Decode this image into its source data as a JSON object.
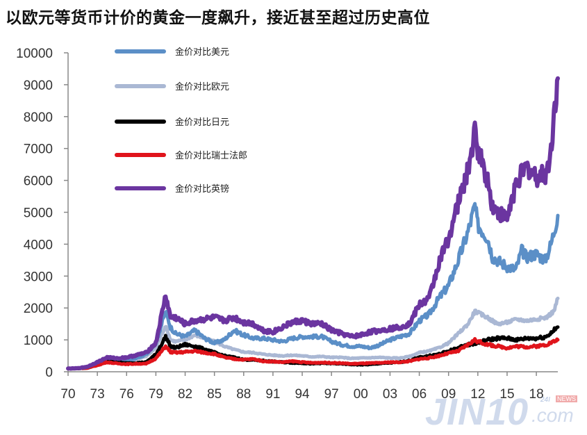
{
  "title": "以欧元等货币计价的黄金一度飙升，接近甚至超过历史高位",
  "watermark": {
    "brand": "JIN10",
    "suffix": ".com",
    "tag_a": "24I",
    "tag_b": "NEWS"
  },
  "chart_data": {
    "type": "line",
    "title": "以欧元等货币计价的黄金一度飙升，接近甚至超过历史高位",
    "xlabel": "",
    "ylabel": "",
    "xlim": [
      1970,
      2020.2
    ],
    "ylim": [
      0,
      10000
    ],
    "grid": false,
    "legend_position": "top-left",
    "x_ticks": [
      1970,
      1973,
      1976,
      1979,
      1982,
      1985,
      1988,
      1991,
      1994,
      1997,
      2000,
      2003,
      2006,
      2009,
      2012,
      2015,
      2018
    ],
    "x_tick_labels": [
      "70",
      "73",
      "76",
      "79",
      "82",
      "85",
      "88",
      "91",
      "94",
      "97",
      "00",
      "03",
      "06",
      "09",
      "12",
      "15",
      "18"
    ],
    "y_ticks": [
      0,
      1000,
      2000,
      3000,
      4000,
      5000,
      6000,
      7000,
      8000,
      9000,
      10000
    ],
    "y_tick_labels": [
      "0",
      "1000",
      "2000",
      "3000",
      "4000",
      "5000",
      "6000",
      "7000",
      "8000",
      "9000",
      "10000"
    ],
    "series": [
      {
        "name": "金价对比美元",
        "color": "#5b8fc7",
        "points": [
          [
            1970,
            100
          ],
          [
            1971,
            110
          ],
          [
            1972,
            150
          ],
          [
            1973,
            300
          ],
          [
            1974,
            450
          ],
          [
            1975,
            400
          ],
          [
            1976,
            350
          ],
          [
            1977,
            420
          ],
          [
            1978,
            550
          ],
          [
            1979,
            900
          ],
          [
            1980,
            1900
          ],
          [
            1980.5,
            1400
          ],
          [
            1981,
            1200
          ],
          [
            1982,
            1100
          ],
          [
            1983,
            1300
          ],
          [
            1984,
            1050
          ],
          [
            1985,
            900
          ],
          [
            1986,
            1000
          ],
          [
            1987,
            1300
          ],
          [
            1988,
            1150
          ],
          [
            1989,
            1050
          ],
          [
            1990,
            1050
          ],
          [
            1991,
            1000
          ],
          [
            1992,
            950
          ],
          [
            1993,
            1050
          ],
          [
            1994,
            1100
          ],
          [
            1995,
            1100
          ],
          [
            1996,
            1100
          ],
          [
            1997,
            950
          ],
          [
            1998,
            850
          ],
          [
            1999,
            800
          ],
          [
            2000,
            800
          ],
          [
            2001,
            750
          ],
          [
            2002,
            850
          ],
          [
            2003,
            1000
          ],
          [
            2004,
            1100
          ],
          [
            2005,
            1200
          ],
          [
            2006,
            1600
          ],
          [
            2007,
            1800
          ],
          [
            2008,
            2300
          ],
          [
            2009,
            2700
          ],
          [
            2010,
            3500
          ],
          [
            2011,
            4400
          ],
          [
            2011.7,
            5200
          ],
          [
            2012,
            4600
          ],
          [
            2013,
            4200
          ],
          [
            2013.5,
            3600
          ],
          [
            2014,
            3500
          ],
          [
            2015,
            3300
          ],
          [
            2015.9,
            3200
          ],
          [
            2016.5,
            3800
          ],
          [
            2017,
            3600
          ],
          [
            2018,
            3700
          ],
          [
            2018.9,
            3500
          ],
          [
            2019.5,
            4000
          ],
          [
            2020.2,
            4900
          ]
        ]
      },
      {
        "name": "金价对比欧元",
        "color": "#aab8d4",
        "points": [
          [
            1970,
            100
          ],
          [
            1971,
            110
          ],
          [
            1972,
            140
          ],
          [
            1973,
            280
          ],
          [
            1974,
            420
          ],
          [
            1975,
            380
          ],
          [
            1976,
            340
          ],
          [
            1977,
            400
          ],
          [
            1978,
            480
          ],
          [
            1979,
            750
          ],
          [
            1980,
            1450
          ],
          [
            1980.5,
            1000
          ],
          [
            1981,
            950
          ],
          [
            1982,
            1000
          ],
          [
            1983,
            1150
          ],
          [
            1984,
            1050
          ],
          [
            1985,
            950
          ],
          [
            1986,
            800
          ],
          [
            1987,
            700
          ],
          [
            1988,
            620
          ],
          [
            1989,
            600
          ],
          [
            1990,
            550
          ],
          [
            1991,
            520
          ],
          [
            1992,
            500
          ],
          [
            1993,
            520
          ],
          [
            1994,
            500
          ],
          [
            1995,
            470
          ],
          [
            1996,
            480
          ],
          [
            1997,
            450
          ],
          [
            1998,
            450
          ],
          [
            1999,
            420
          ],
          [
            2000,
            430
          ],
          [
            2001,
            440
          ],
          [
            2002,
            450
          ],
          [
            2003,
            430
          ],
          [
            2004,
            430
          ],
          [
            2005,
            480
          ],
          [
            2006,
            600
          ],
          [
            2007,
            650
          ],
          [
            2008,
            750
          ],
          [
            2009,
            900
          ],
          [
            2010,
            1200
          ],
          [
            2011,
            1500
          ],
          [
            2011.7,
            1900
          ],
          [
            2012,
            1850
          ],
          [
            2013,
            1700
          ],
          [
            2014,
            1500
          ],
          [
            2015,
            1550
          ],
          [
            2016,
            1650
          ],
          [
            2017,
            1600
          ],
          [
            2018,
            1650
          ],
          [
            2019,
            1700
          ],
          [
            2019.8,
            1900
          ],
          [
            2020.2,
            2300
          ]
        ]
      },
      {
        "name": "金价对比日元",
        "color": "#000000",
        "points": [
          [
            1970,
            100
          ],
          [
            1971,
            100
          ],
          [
            1972,
            120
          ],
          [
            1973,
            220
          ],
          [
            1974,
            350
          ],
          [
            1975,
            300
          ],
          [
            1976,
            270
          ],
          [
            1977,
            280
          ],
          [
            1978,
            300
          ],
          [
            1979,
            550
          ],
          [
            1980,
            1100
          ],
          [
            1980.5,
            800
          ],
          [
            1981,
            750
          ],
          [
            1982,
            850
          ],
          [
            1983,
            800
          ],
          [
            1984,
            700
          ],
          [
            1985,
            600
          ],
          [
            1986,
            500
          ],
          [
            1987,
            450
          ],
          [
            1988,
            380
          ],
          [
            1989,
            370
          ],
          [
            1990,
            350
          ],
          [
            1991,
            320
          ],
          [
            1992,
            300
          ],
          [
            1993,
            280
          ],
          [
            1994,
            270
          ],
          [
            1995,
            250
          ],
          [
            1996,
            270
          ],
          [
            1997,
            260
          ],
          [
            1998,
            250
          ],
          [
            1999,
            230
          ],
          [
            2000,
            220
          ],
          [
            2001,
            230
          ],
          [
            2002,
            260
          ],
          [
            2003,
            280
          ],
          [
            2004,
            300
          ],
          [
            2005,
            350
          ],
          [
            2006,
            450
          ],
          [
            2007,
            500
          ],
          [
            2008,
            550
          ],
          [
            2009,
            650
          ],
          [
            2010,
            750
          ],
          [
            2011,
            850
          ],
          [
            2012,
            900
          ],
          [
            2013,
            1000
          ],
          [
            2014,
            1050
          ],
          [
            2015,
            1050
          ],
          [
            2016,
            1000
          ],
          [
            2017,
            1050
          ],
          [
            2018,
            1050
          ],
          [
            2019,
            1100
          ],
          [
            2020.2,
            1400
          ]
        ]
      },
      {
        "name": "金价对比瑞士法郎",
        "color": "#e0141b",
        "points": [
          [
            1970,
            100
          ],
          [
            1971,
            105
          ],
          [
            1972,
            120
          ],
          [
            1973,
            200
          ],
          [
            1974,
            300
          ],
          [
            1975,
            260
          ],
          [
            1976,
            240
          ],
          [
            1977,
            250
          ],
          [
            1978,
            250
          ],
          [
            1979,
            420
          ],
          [
            1980,
            800
          ],
          [
            1980.5,
            620
          ],
          [
            1981,
            600
          ],
          [
            1982,
            620
          ],
          [
            1983,
            650
          ],
          [
            1984,
            600
          ],
          [
            1985,
            560
          ],
          [
            1986,
            450
          ],
          [
            1987,
            400
          ],
          [
            1988,
            380
          ],
          [
            1989,
            400
          ],
          [
            1990,
            330
          ],
          [
            1991,
            320
          ],
          [
            1992,
            300
          ],
          [
            1993,
            330
          ],
          [
            1994,
            300
          ],
          [
            1995,
            280
          ],
          [
            1996,
            290
          ],
          [
            1997,
            280
          ],
          [
            1998,
            270
          ],
          [
            1999,
            250
          ],
          [
            2000,
            260
          ],
          [
            2001,
            270
          ],
          [
            2002,
            280
          ],
          [
            2003,
            300
          ],
          [
            2004,
            300
          ],
          [
            2005,
            330
          ],
          [
            2006,
            400
          ],
          [
            2007,
            430
          ],
          [
            2008,
            500
          ],
          [
            2009,
            580
          ],
          [
            2010,
            650
          ],
          [
            2011,
            850
          ],
          [
            2011.7,
            1000
          ],
          [
            2012,
            950
          ],
          [
            2013,
            850
          ],
          [
            2014,
            800
          ],
          [
            2015,
            750
          ],
          [
            2016,
            800
          ],
          [
            2017,
            780
          ],
          [
            2018,
            800
          ],
          [
            2019,
            850
          ],
          [
            2020.2,
            1000
          ]
        ]
      },
      {
        "name": "金价对比英镑",
        "color": "#6b35a0",
        "points": [
          [
            1970,
            100
          ],
          [
            1971,
            110
          ],
          [
            1972,
            160
          ],
          [
            1973,
            300
          ],
          [
            1974,
            450
          ],
          [
            1975,
            420
          ],
          [
            1976,
            450
          ],
          [
            1977,
            520
          ],
          [
            1978,
            600
          ],
          [
            1979,
            900
          ],
          [
            1980,
            2400
          ],
          [
            1980.5,
            1700
          ],
          [
            1981,
            1700
          ],
          [
            1982,
            1500
          ],
          [
            1983,
            1600
          ],
          [
            1984,
            1650
          ],
          [
            1985,
            1700
          ],
          [
            1986,
            1600
          ],
          [
            1987,
            1700
          ],
          [
            1988,
            1550
          ],
          [
            1989,
            1500
          ],
          [
            1990,
            1300
          ],
          [
            1991,
            1250
          ],
          [
            1992,
            1400
          ],
          [
            1993,
            1550
          ],
          [
            1994,
            1600
          ],
          [
            1995,
            1500
          ],
          [
            1996,
            1500
          ],
          [
            1997,
            1300
          ],
          [
            1998,
            1200
          ],
          [
            1999,
            1100
          ],
          [
            2000,
            1150
          ],
          [
            2001,
            1250
          ],
          [
            2002,
            1300
          ],
          [
            2003,
            1350
          ],
          [
            2004,
            1400
          ],
          [
            2005,
            1500
          ],
          [
            2006,
            2100
          ],
          [
            2007,
            2300
          ],
          [
            2008,
            3400
          ],
          [
            2009,
            4200
          ],
          [
            2010,
            5300
          ],
          [
            2011,
            6300
          ],
          [
            2011.7,
            7500
          ],
          [
            2012,
            7000
          ],
          [
            2013,
            6000
          ],
          [
            2013.5,
            5200
          ],
          [
            2014,
            5000
          ],
          [
            2015,
            4800
          ],
          [
            2016,
            6000
          ],
          [
            2017,
            6400
          ],
          [
            2018,
            6100
          ],
          [
            2019,
            6200
          ],
          [
            2019.5,
            6900
          ],
          [
            2019.8,
            8100
          ],
          [
            2020.2,
            9200
          ]
        ]
      }
    ]
  }
}
